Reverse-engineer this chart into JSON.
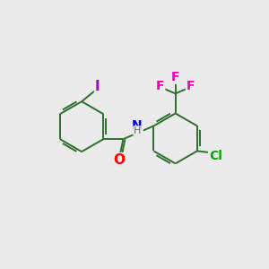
{
  "bg_color": "#ebebeb",
  "bond_color": "#2d6e2d",
  "bond_width": 1.4,
  "atom_colors": {
    "I": "#aa00cc",
    "O": "#ff0000",
    "N": "#0000dd",
    "H": "#666666",
    "F": "#ee00bb",
    "Cl": "#00aa00",
    "C": "#2d6e2d"
  },
  "font_size": 10,
  "fig_size": [
    3.0,
    3.0
  ],
  "dpi": 100
}
